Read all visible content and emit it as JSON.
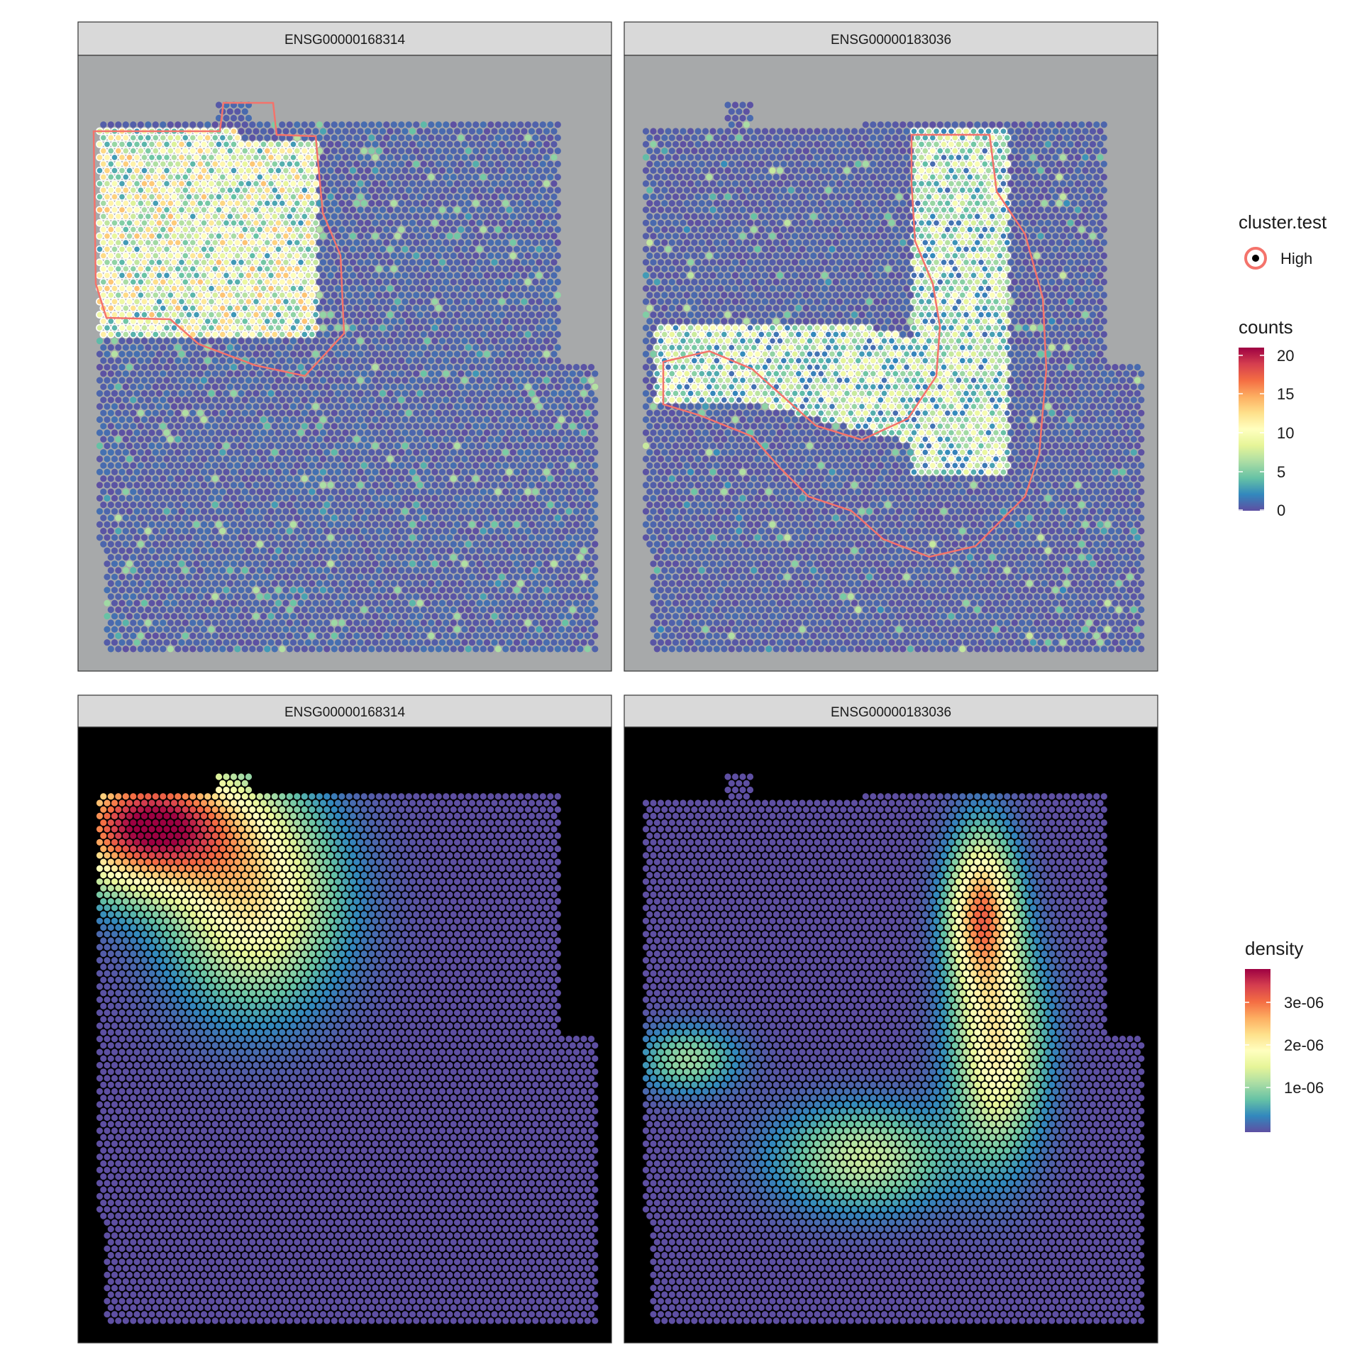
{
  "panels_top": [
    {
      "strip": "ENSG00000168314"
    },
    {
      "strip": "ENSG00000183036"
    }
  ],
  "panels_bottom": [
    {
      "strip": "ENSG00000168314"
    },
    {
      "strip": "ENSG00000183036"
    }
  ],
  "legend_cluster": {
    "title": "cluster.test",
    "label": "High"
  },
  "legend_counts": {
    "title": "counts",
    "ticks": [
      "20",
      "15",
      "10",
      "5",
      "0"
    ]
  },
  "legend_density": {
    "title": "density",
    "ticks": [
      "3e-06",
      "2e-06",
      "1e-06"
    ]
  },
  "colors": {
    "palette": [
      "#5e4fa2",
      "#3288bd",
      "#66c2a5",
      "#abdda4",
      "#e6f598",
      "#ffffbf",
      "#fee08b",
      "#fdae61",
      "#f46d43",
      "#d53e4f",
      "#9e0142"
    ],
    "highlight_outline": "#f4736b",
    "tissue_background": "#a7a9aa",
    "density_background": "#000000"
  },
  "chart_data": [
    {
      "type": "scatter",
      "strip": "ENSG00000168314",
      "fill": "counts",
      "color_range": [
        0,
        21
      ],
      "highlight_cluster": "High"
    },
    {
      "type": "scatter",
      "strip": "ENSG00000183036",
      "fill": "counts",
      "color_range": [
        0,
        21
      ],
      "highlight_cluster": "High"
    },
    {
      "type": "scatter",
      "strip": "ENSG00000168314",
      "fill": "density",
      "color_range": [
        0,
        3.7e-06
      ]
    },
    {
      "type": "scatter",
      "strip": "ENSG00000183036",
      "fill": "density",
      "color_range": [
        0,
        3.7e-06
      ]
    }
  ]
}
